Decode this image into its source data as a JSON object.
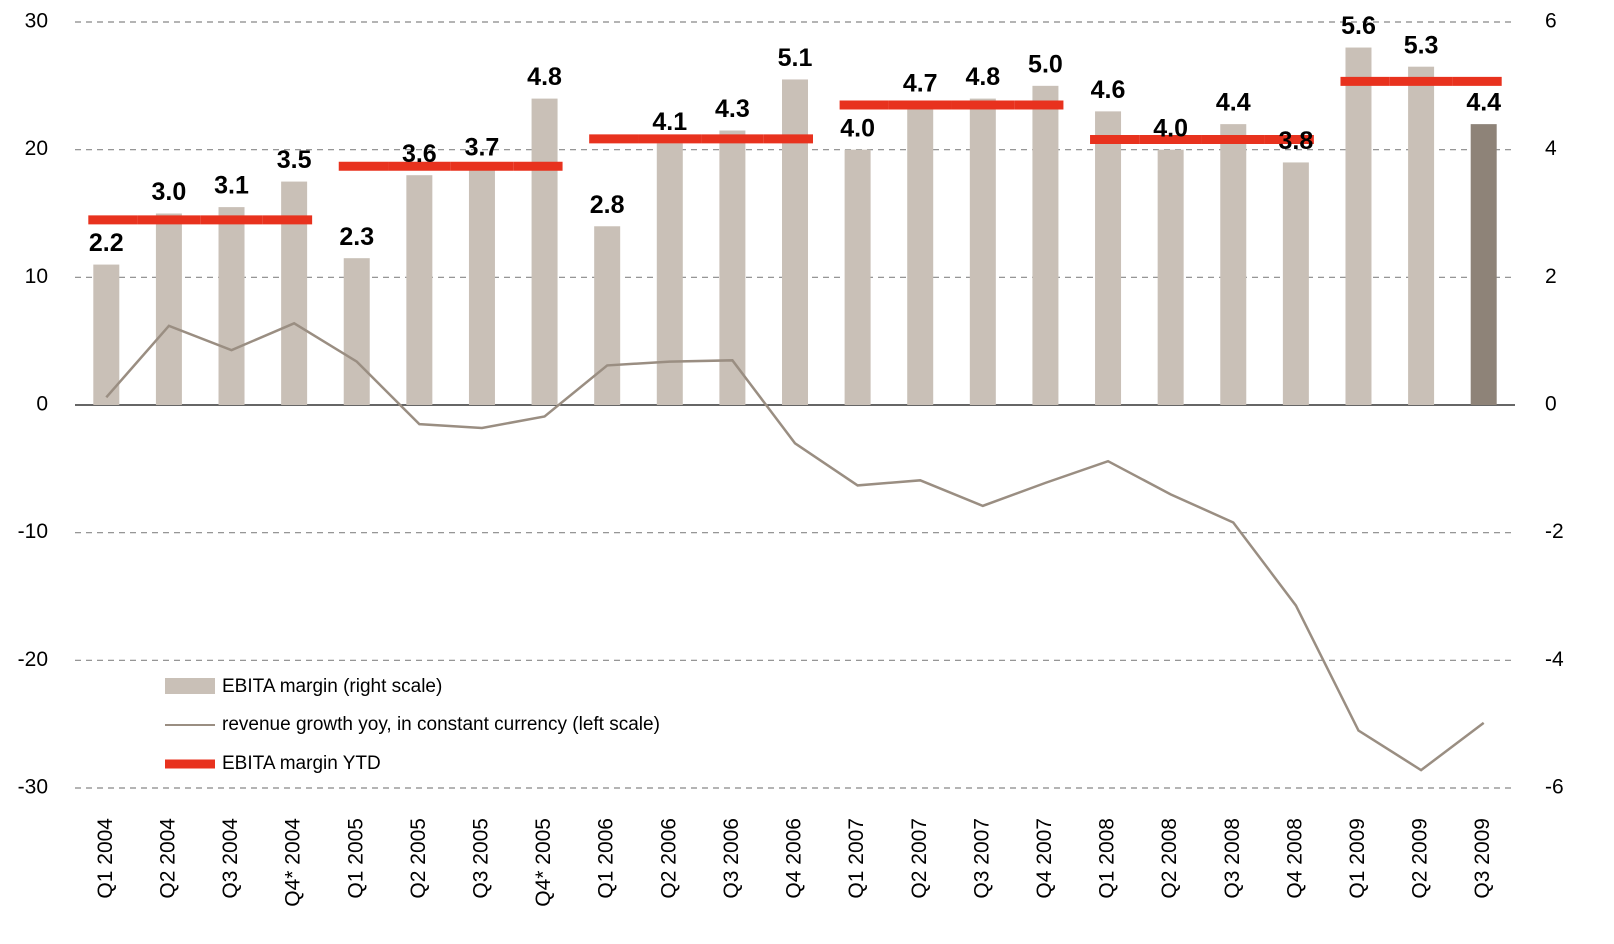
{
  "chart_data": {
    "type": "bar-line",
    "categories": [
      "Q1 2004",
      "Q2 2004",
      "Q3 2004",
      "Q4* 2004",
      "Q1 2005",
      "Q2 2005",
      "Q3 2005",
      "Q4* 2005",
      "Q1 2006",
      "Q2 2006",
      "Q3 2006",
      "Q4 2006",
      "Q1 2007",
      "Q2 2007",
      "Q3 2007",
      "Q4 2007",
      "Q1 2008",
      "Q2 2008",
      "Q3 2008",
      "Q4 2008",
      "Q1 2009",
      "Q2 2009",
      "Q3 2009"
    ],
    "series": [
      {
        "name": "EBITA margin (right scale)",
        "type": "bar",
        "axis": "y2",
        "color": "#c9c0b7",
        "colors": [
          "#c9c0b7",
          "#c9c0b7",
          "#c9c0b7",
          "#c9c0b7",
          "#c9c0b7",
          "#c9c0b7",
          "#c9c0b7",
          "#c9c0b7",
          "#c9c0b7",
          "#c9c0b7",
          "#c9c0b7",
          "#c9c0b7",
          "#c9c0b7",
          "#c9c0b7",
          "#c9c0b7",
          "#c9c0b7",
          "#c9c0b7",
          "#c9c0b7",
          "#c9c0b7",
          "#c9c0b7",
          "#c9c0b7",
          "#c9c0b7",
          "#8e8378"
        ],
        "values": [
          2.2,
          3.0,
          3.1,
          3.5,
          2.3,
          3.6,
          3.7,
          4.8,
          2.8,
          4.1,
          4.3,
          5.1,
          4.0,
          4.7,
          4.8,
          5.0,
          4.6,
          4.0,
          4.4,
          3.8,
          5.6,
          5.3,
          4.4
        ],
        "value_labels": [
          "2.2",
          "3.0",
          "3.1",
          "3.5",
          "2.3",
          "3.6",
          "3.7",
          "4.8",
          "2.8",
          "4.1",
          "4.3",
          "5.1",
          "4.0",
          "4.7",
          "4.8",
          "5.0",
          "4.6",
          "4.0",
          "4.4",
          "3.8",
          "5.6",
          "5.3",
          "4.4"
        ]
      },
      {
        "name": "revenue growth yoy, in constant currency (left scale)",
        "type": "line",
        "axis": "y",
        "color": "#9a8e82",
        "values": [
          0.6,
          6.2,
          4.3,
          6.4,
          3.4,
          -1.5,
          -1.8,
          -0.9,
          3.1,
          3.4,
          3.5,
          -3.0,
          -6.3,
          -5.9,
          -7.9,
          -6.1,
          -4.4,
          -7.0,
          -9.2,
          -15.7,
          -25.5,
          -28.6,
          -24.9
        ]
      },
      {
        "name": "EBITA margin YTD",
        "type": "ytd",
        "axis": "y2",
        "color": "#e8321e",
        "values": [
          2.9,
          2.9,
          2.9,
          2.9,
          3.74,
          3.74,
          3.74,
          3.74,
          4.17,
          4.17,
          4.17,
          4.17,
          4.7,
          4.7,
          4.7,
          4.7,
          4.16,
          4.16,
          4.16,
          4.16,
          5.07,
          5.07,
          5.07
        ]
      }
    ],
    "ylim": [
      -30,
      30
    ],
    "yticks": [
      -30,
      -20,
      -10,
      0,
      10,
      20,
      30
    ],
    "y2lim": [
      -6,
      6
    ],
    "y2ticks": [
      -6,
      -4,
      -2,
      0,
      2,
      4,
      6
    ],
    "grid": true
  }
}
